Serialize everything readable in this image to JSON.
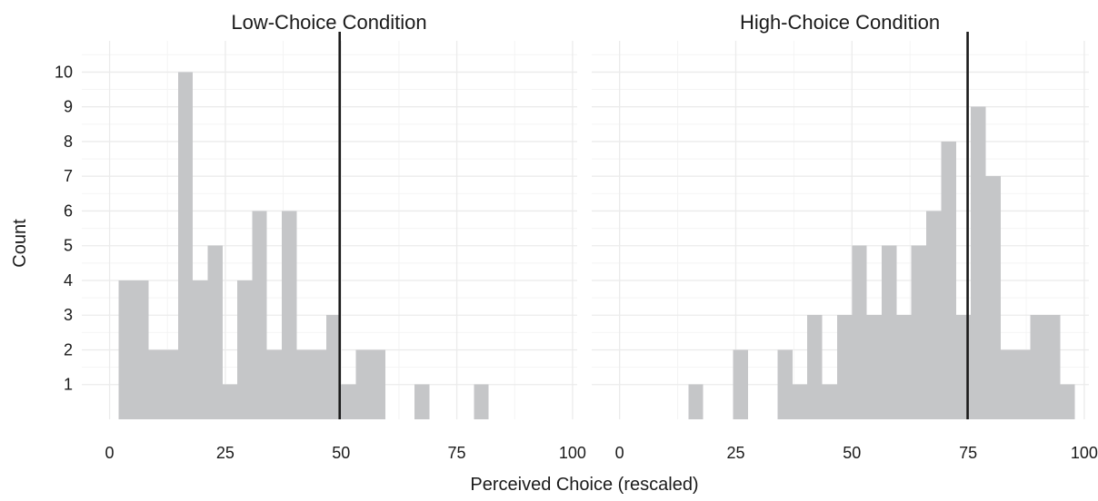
{
  "chart_data": {
    "type": "bar",
    "shared": {
      "xlabel": "Perceived Choice (rescaled)",
      "ylabel": "Count",
      "xlim": [
        -6,
        101
      ],
      "ylim": [
        0,
        10.9
      ],
      "x_ticks": [
        "0",
        "25",
        "50",
        "75",
        "100"
      ],
      "y_ticks": [
        "1",
        "2",
        "3",
        "4",
        "5",
        "6",
        "7",
        "8",
        "9",
        "10"
      ],
      "bin_width": 3.2,
      "bar_color": "#c5c6c8",
      "line_color": "#1a1a1a",
      "grid": true
    },
    "panels": [
      {
        "title": "Low-Choice Condition",
        "reference_line": 49.7,
        "bins": [
          {
            "x": 2.0,
            "count": 4
          },
          {
            "x": 5.2,
            "count": 4
          },
          {
            "x": 8.4,
            "count": 2
          },
          {
            "x": 11.6,
            "count": 2
          },
          {
            "x": 14.8,
            "count": 10
          },
          {
            "x": 18.0,
            "count": 4
          },
          {
            "x": 21.2,
            "count": 5
          },
          {
            "x": 24.4,
            "count": 1
          },
          {
            "x": 27.6,
            "count": 4
          },
          {
            "x": 30.8,
            "count": 6
          },
          {
            "x": 34.0,
            "count": 2
          },
          {
            "x": 37.2,
            "count": 6
          },
          {
            "x": 40.4,
            "count": 2
          },
          {
            "x": 43.6,
            "count": 2
          },
          {
            "x": 46.8,
            "count": 3
          },
          {
            "x": 50.0,
            "count": 1
          },
          {
            "x": 53.2,
            "count": 2
          },
          {
            "x": 56.4,
            "count": 2
          },
          {
            "x": 65.9,
            "count": 1
          },
          {
            "x": 78.7,
            "count": 1
          }
        ]
      },
      {
        "title": "High-Choice Condition",
        "reference_line": 74.9,
        "bins": [
          {
            "x": 14.8,
            "count": 1
          },
          {
            "x": 24.4,
            "count": 2
          },
          {
            "x": 34.0,
            "count": 2
          },
          {
            "x": 37.2,
            "count": 1
          },
          {
            "x": 40.4,
            "count": 3
          },
          {
            "x": 43.6,
            "count": 1
          },
          {
            "x": 46.8,
            "count": 3
          },
          {
            "x": 50.0,
            "count": 5
          },
          {
            "x": 53.2,
            "count": 3
          },
          {
            "x": 56.4,
            "count": 5
          },
          {
            "x": 59.6,
            "count": 3
          },
          {
            "x": 62.8,
            "count": 5
          },
          {
            "x": 66.0,
            "count": 6
          },
          {
            "x": 69.2,
            "count": 8
          },
          {
            "x": 72.4,
            "count": 3
          },
          {
            "x": 75.6,
            "count": 9
          },
          {
            "x": 78.8,
            "count": 7
          },
          {
            "x": 82.0,
            "count": 2
          },
          {
            "x": 85.2,
            "count": 2
          },
          {
            "x": 88.4,
            "count": 3
          },
          {
            "x": 91.6,
            "count": 3
          },
          {
            "x": 94.8,
            "count": 1
          }
        ]
      }
    ]
  }
}
